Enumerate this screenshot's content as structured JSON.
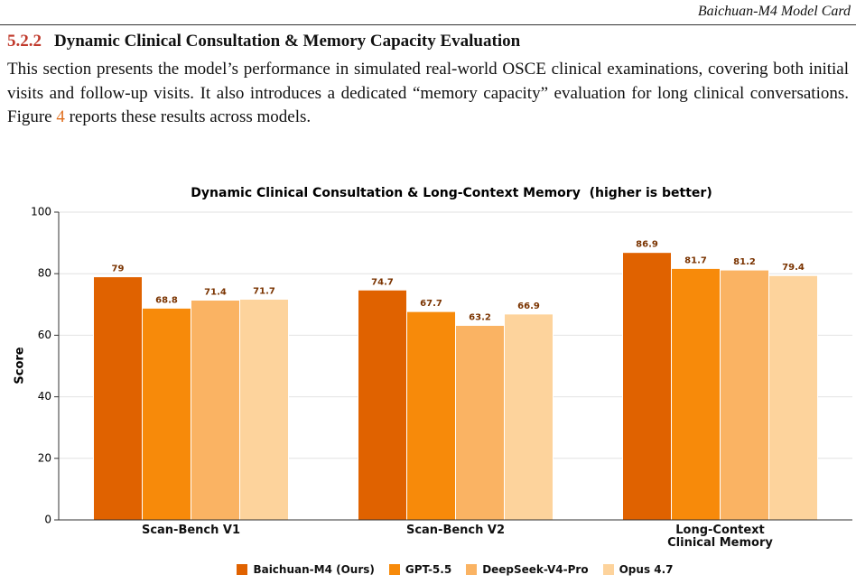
{
  "header": {
    "title": "Baichuan-M4 Model Card"
  },
  "section": {
    "number": "5.2.2",
    "title": "Dynamic Clinical Consultation & Memory Capacity Evaluation"
  },
  "paragraph": {
    "text_before": "This section presents the model’s performance in simulated real-world OSCE clinical examinations, covering both initial visits and follow-up visits. It also introduces a dedicated “memory capacity” evaluation for long clinical conversations. Figure ",
    "figure_ref": "4",
    "text_after": " reports these results across models."
  },
  "chart_data": {
    "type": "bar",
    "title": "Dynamic Clinical Consultation & Long-Context Memory  (higher is better)",
    "y_label": "Score",
    "categories": [
      "Scan-Bench V1",
      "Scan-Bench V2",
      "Long-Context Clinical Memory"
    ],
    "series": [
      {
        "name": "Baichuan-M4 (Ours)",
        "color": "#e06200",
        "values": [
          79,
          74.7,
          86.9
        ]
      },
      {
        "name": "GPT-5.5",
        "color": "#f78a0a",
        "values": [
          68.8,
          67.7,
          81.7
        ]
      },
      {
        "name": "DeepSeek-V4-Pro",
        "color": "#fab363",
        "values": [
          71.4,
          63.2,
          81.2
        ]
      },
      {
        "name": "Opus 4.7",
        "color": "#fdd39c",
        "values": [
          71.7,
          66.9,
          79.4
        ]
      }
    ],
    "ylim": [
      0,
      100
    ],
    "yticks": [
      0,
      20,
      40,
      60,
      80,
      100
    ],
    "grid": true,
    "legend": "bottom"
  }
}
